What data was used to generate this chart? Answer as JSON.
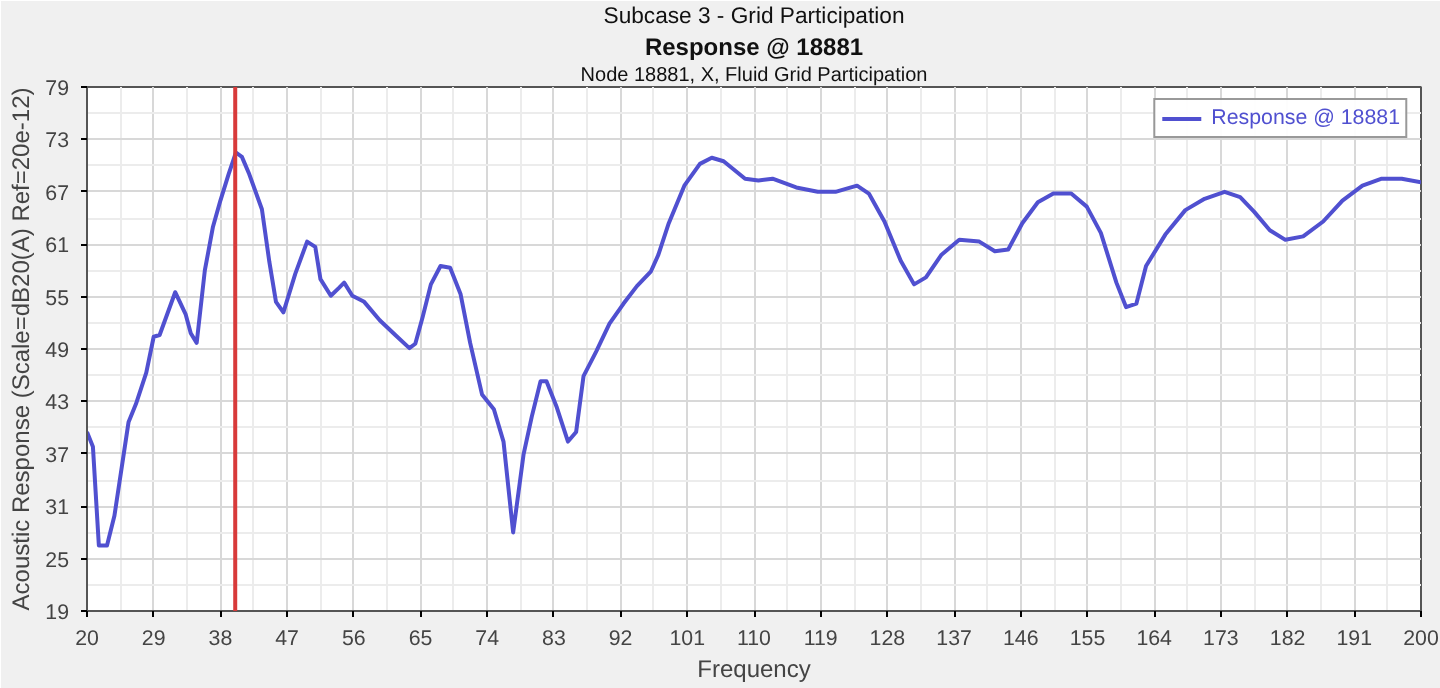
{
  "chart_data": {
    "type": "line",
    "title": "Subcase 3 - Grid Participation",
    "subtitle": "Response @ 18881",
    "annotations": [
      "Node 18881, X, Fluid Grid Participation"
    ],
    "xlabel": "Frequency",
    "ylabel": "Acoustic Response (Scale=dB20(A) Ref=20e-12)",
    "xlim": [
      20,
      200
    ],
    "ylim": [
      19,
      79
    ],
    "xticks": [
      20,
      29,
      38,
      47,
      56,
      65,
      74,
      83,
      92,
      101,
      110,
      119,
      128,
      137,
      146,
      155,
      164,
      173,
      182,
      191,
      200
    ],
    "yticks": [
      19,
      25,
      31,
      37,
      43,
      49,
      55,
      61,
      67,
      73,
      79
    ],
    "grid": true,
    "legend": "top right",
    "line_style": "solid",
    "ref_lines": [
      {
        "axis": "x",
        "value": 40,
        "color": "#d83a3a"
      }
    ],
    "series": [
      {
        "name": "Response @ 18881",
        "color": "#5050d0",
        "x": [
          20,
          20.8,
          21.6,
          22.7,
          23.7,
          25.6,
          26.6,
          28,
          29,
          29.8,
          31.9,
          33.3,
          34,
          34.8,
          35.9,
          37,
          38,
          39.1,
          40.1,
          40.9,
          41.9,
          43.6,
          44.6,
          45.5,
          46.5,
          48.1,
          49.7,
          50.8,
          51.5,
          52.9,
          54,
          54.7,
          55.8,
          57.4,
          59.5,
          61.6,
          63.5,
          64.3,
          65.3,
          66.4,
          67.7,
          69,
          70.4,
          71.7,
          73.3,
          74.9,
          76.2,
          77.5,
          78.9,
          80,
          81.2,
          82,
          83.4,
          84.9,
          86,
          87,
          88.7,
          90.5,
          92.4,
          94.2,
          96.1,
          97.1,
          98.5,
          100.6,
          102.7,
          104.3,
          105.9,
          108.8,
          110.6,
          112.5,
          115.7,
          118.6,
          121,
          123.9,
          125.5,
          127.6,
          129.8,
          131.6,
          133.2,
          135.3,
          137.7,
          140.4,
          142.5,
          144.3,
          146.2,
          148.3,
          150.4,
          152.8,
          154.9,
          156.8,
          158.9,
          160.2,
          161.6,
          162.9,
          165.5,
          168.2,
          170.8,
          173.5,
          175.6,
          177.5,
          179.6,
          181.7,
          184.1,
          186.8,
          189.4,
          192.1,
          194.7,
          197.4,
          200
        ],
        "values": [
          39.5,
          37.8,
          26.5,
          26.5,
          29.9,
          40.6,
          42.7,
          46.3,
          50.4,
          50.6,
          55.5,
          53,
          50.8,
          49.7,
          58,
          63,
          66,
          69,
          71.5,
          71,
          69,
          65,
          59,
          54.4,
          53.2,
          57.6,
          61.3,
          60.7,
          57,
          55.1,
          56,
          56.6,
          55.1,
          54.4,
          52.3,
          50.6,
          49.1,
          49.6,
          52.7,
          56.4,
          58.5,
          58.3,
          55.3,
          49.7,
          43.8,
          42.1,
          38.4,
          28,
          36.9,
          41.2,
          45.3,
          45.3,
          42.3,
          38.4,
          39.5,
          45.9,
          48.7,
          51.9,
          54.2,
          56.2,
          57.9,
          59.8,
          63.4,
          67.7,
          70.2,
          70.9,
          70.5,
          68.5,
          68.3,
          68.5,
          67.5,
          67,
          67,
          67.7,
          66.8,
          63.6,
          59.1,
          56.4,
          57.2,
          59.8,
          61.5,
          61.3,
          60.2,
          60.4,
          63.4,
          65.8,
          66.8,
          66.8,
          65.3,
          62.3,
          56.6,
          53.8,
          54.2,
          58.5,
          62.1,
          64.9,
          66.2,
          67,
          66.4,
          64.7,
          62.6,
          61.5,
          61.9,
          63.6,
          66,
          67.7,
          68.5,
          68.5,
          68.1
        ]
      }
    ]
  }
}
